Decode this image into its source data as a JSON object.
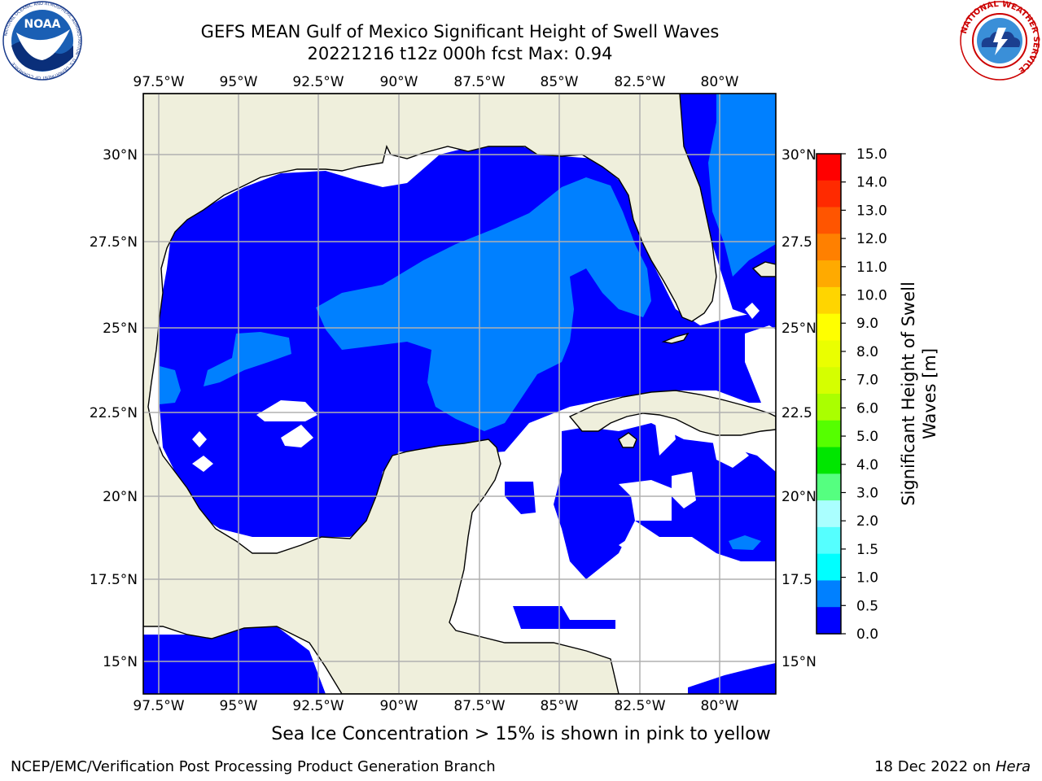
{
  "header": {
    "title_line1": "GEFS MEAN Gulf of Mexico Significant Height of Swell Waves",
    "title_line2": "20221216 t12z 000h fcst   Max: 0.94"
  },
  "logos": {
    "left": {
      "icon": "noaa-logo-icon",
      "text": "NOAA",
      "ring_text": "NATIONAL OCEANIC AND ATMOSPHERIC ADMINISTRATION · U.S. DEPARTMENT OF COMMERCE"
    },
    "right": {
      "icon": "nws-logo-icon",
      "ring_text": "NATIONAL WEATHER SERVICE"
    }
  },
  "map": {
    "lon_ticks": [
      "97.5°W",
      "95°W",
      "92.5°W",
      "90°W",
      "87.5°W",
      "85°W",
      "82.5°W",
      "80°W"
    ],
    "lat_ticks": [
      "30°N",
      "27.5°N",
      "25°N",
      "22.5°N",
      "20°N",
      "17.5°N",
      "15°N"
    ],
    "lat_ticks_right": [
      "30°N",
      "27.5",
      "25°N",
      "22.5",
      "20°N",
      "17.5",
      "15°N"
    ],
    "colors": {
      "land": "#efefdc",
      "swell_0_0.5": "#0000ff",
      "swell_0.5_1.0": "#0080ff",
      "gridline": "#b0b0b0"
    }
  },
  "colorbar": {
    "label": "Significant Height of Swell Waves [m]",
    "label_line1": "Significant Height of Swell",
    "label_line2": "Waves [m]",
    "ticks": [
      "15.0",
      "14.0",
      "13.0",
      "12.0",
      "11.0",
      "10.0",
      "9.0",
      "8.0",
      "7.0",
      "6.0",
      "5.0",
      "4.0",
      "3.0",
      "2.0",
      "1.5",
      "1.0",
      "0.5",
      "0.0"
    ],
    "colors": [
      "#ff0000",
      "#ff2a00",
      "#ff5500",
      "#ff8000",
      "#ffaa00",
      "#ffd500",
      "#ffff00",
      "#eaff00",
      "#d5ff00",
      "#aaff00",
      "#55ff00",
      "#00e600",
      "#55ff80",
      "#aaffff",
      "#55ffff",
      "#00ffff",
      "#0080ff",
      "#0000ff"
    ]
  },
  "footer": {
    "note": "Sea Ice Concentration > 15% is shown in pink to yellow",
    "credit_left": "NCEP/EMC/Verification Post Processing Product Generation Branch",
    "credit_right_date": "18 Dec 2022 on ",
    "credit_right_machine": "Hera"
  }
}
